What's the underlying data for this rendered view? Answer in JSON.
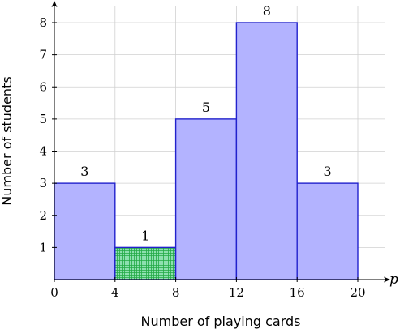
{
  "chart_data": {
    "type": "bar",
    "subtype": "histogram",
    "title": "",
    "xlabel": "Number of playing cards",
    "ylabel": "Number of students",
    "x_axis_variable": "p",
    "xlim": [
      0,
      20
    ],
    "ylim": [
      0,
      8
    ],
    "x_ticks": [
      "0",
      "4",
      "8",
      "12",
      "16",
      "20"
    ],
    "y_ticks": [
      "1",
      "2",
      "3",
      "4",
      "5",
      "6",
      "7",
      "8"
    ],
    "grid": true,
    "bins": [
      {
        "from": 0,
        "to": 4,
        "value": 3,
        "label": "3",
        "highlighted": false
      },
      {
        "from": 4,
        "to": 8,
        "value": 1,
        "label": "1",
        "highlighted": true
      },
      {
        "from": 8,
        "to": 12,
        "value": 5,
        "label": "5",
        "highlighted": false
      },
      {
        "from": 12,
        "to": 16,
        "value": 8,
        "label": "8",
        "highlighted": false
      },
      {
        "from": 16,
        "to": 20,
        "value": 3,
        "label": "3",
        "highlighted": false
      }
    ],
    "colors": {
      "bar_fill": "#b3b3ff",
      "bar_stroke": "#2222cc",
      "highlight_fill": "#8ee0b0",
      "highlight_pattern": "#22aa44",
      "grid": "#d0d0d0",
      "axis": "#000000"
    }
  }
}
